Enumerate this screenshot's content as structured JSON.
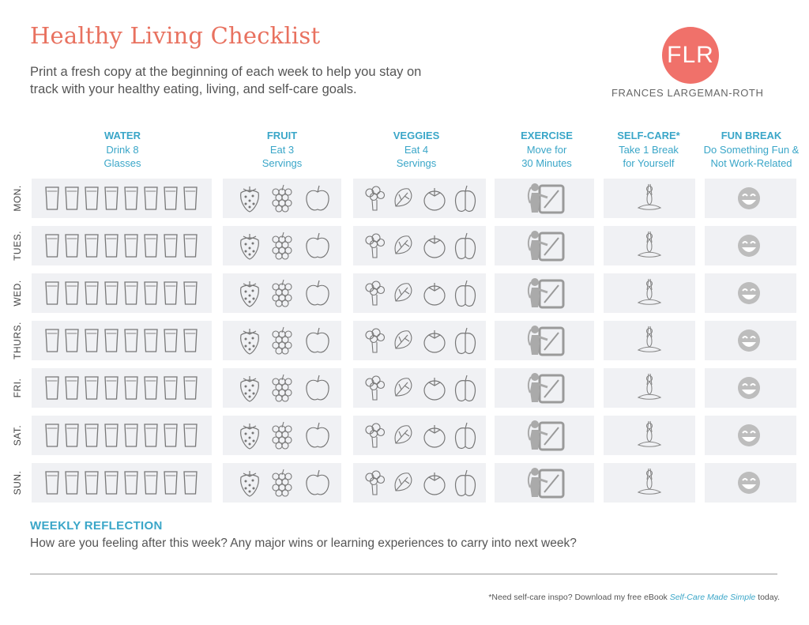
{
  "header": {
    "title": "Healthy Living Checklist",
    "subtitle": "Print a fresh copy at the beginning of each week to help you stay on track with your healthy eating, living, and self-care goals.",
    "logo_text": "FLR",
    "brand": "FRANCES LARGEMAN-ROTH"
  },
  "columns": [
    {
      "heading": "WATER",
      "line1": "Drink 8",
      "line2": "Glasses"
    },
    {
      "heading": "FRUIT",
      "line1": "Eat 3",
      "line2": "Servings"
    },
    {
      "heading": "VEGGIES",
      "line1": "Eat 4",
      "line2": "Servings"
    },
    {
      "heading": "EXERCISE",
      "line1": "Move for",
      "line2": "30 Minutes"
    },
    {
      "heading": "SELF-CARE*",
      "line1": "Take 1 Break",
      "line2": "for Yourself"
    },
    {
      "heading": "FUN BREAK",
      "line1": "Do Something Fun &",
      "line2": "Not Work-Related"
    }
  ],
  "days": [
    "MON.",
    "TUES.",
    "WED.",
    "THURS.",
    "FRI.",
    "SAT.",
    "SUN."
  ],
  "icons": {
    "water": "glass-icon",
    "fruit": [
      "strawberry-icon",
      "grapes-icon",
      "apple-icon"
    ],
    "veggies": [
      "broccoli-icon",
      "lettuce-icon",
      "tomato-icon",
      "pepper-icon"
    ],
    "exercise": "exercise-icon",
    "self_care": "meditation-icon",
    "fun_break": "smiley-icon"
  },
  "colors": {
    "title": "#e8715f",
    "accent": "#3aa6c8",
    "logo": "#f0716a",
    "cell_bg": "#f0f1f4"
  },
  "reflection": {
    "title": "WEEKLY REFLECTION",
    "question": "How are you feeling after this week? Any major wins or learning experiences to carry into next week?"
  },
  "footnote": {
    "before": "*Need self-care inspo? Download my free eBook ",
    "link": "Self-Care Made Simple",
    "after": " today."
  }
}
